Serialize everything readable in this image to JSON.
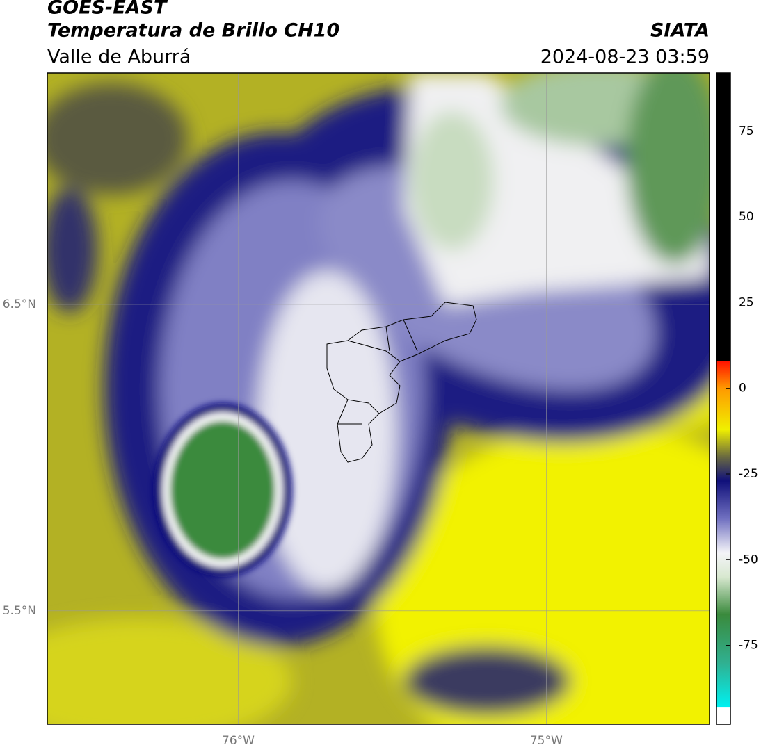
{
  "header": {
    "title": "GOES-EAST",
    "subtitle": "Temperatura de Brillo CH10",
    "region": "Valle de Aburrá",
    "source": "SIATA",
    "datetime": "2024-08-23 03:59"
  },
  "map": {
    "xlim": [
      -76.62,
      -74.47
    ],
    "ylim": [
      5.13,
      7.255
    ],
    "xticks": [
      {
        "value": -76,
        "label": "76°W"
      },
      {
        "value": -75,
        "label": "75°W"
      }
    ],
    "yticks": [
      {
        "value": 6.5,
        "label": "6.5°N"
      },
      {
        "value": 5.5,
        "label": "5.5°N"
      }
    ],
    "grid": true
  },
  "colorbar": {
    "lim": [
      -98,
      92
    ],
    "ticks": [
      75,
      50,
      25,
      0,
      -25,
      -50,
      -75
    ],
    "stops": [
      {
        "value": -98,
        "color": "#ffffff"
      },
      {
        "value": -93,
        "color": "#ffffff"
      },
      {
        "value": -92.9,
        "color": "#00f0f0"
      },
      {
        "value": -80,
        "color": "#30b090"
      },
      {
        "value": -66,
        "color": "#3a8a3c"
      },
      {
        "value": -55,
        "color": "#d8e8d0"
      },
      {
        "value": -48,
        "color": "#f4f4f8"
      },
      {
        "value": -38,
        "color": "#7070c0"
      },
      {
        "value": -27,
        "color": "#10107a"
      },
      {
        "value": -20,
        "color": "#6a6a40"
      },
      {
        "value": -12,
        "color": "#f0f000"
      },
      {
        "value": 0,
        "color": "#ff9900"
      },
      {
        "value": 8,
        "color": "#ff1000"
      },
      {
        "value": 8.1,
        "color": "#000000"
      },
      {
        "value": 92,
        "color": "#000000"
      }
    ]
  }
}
